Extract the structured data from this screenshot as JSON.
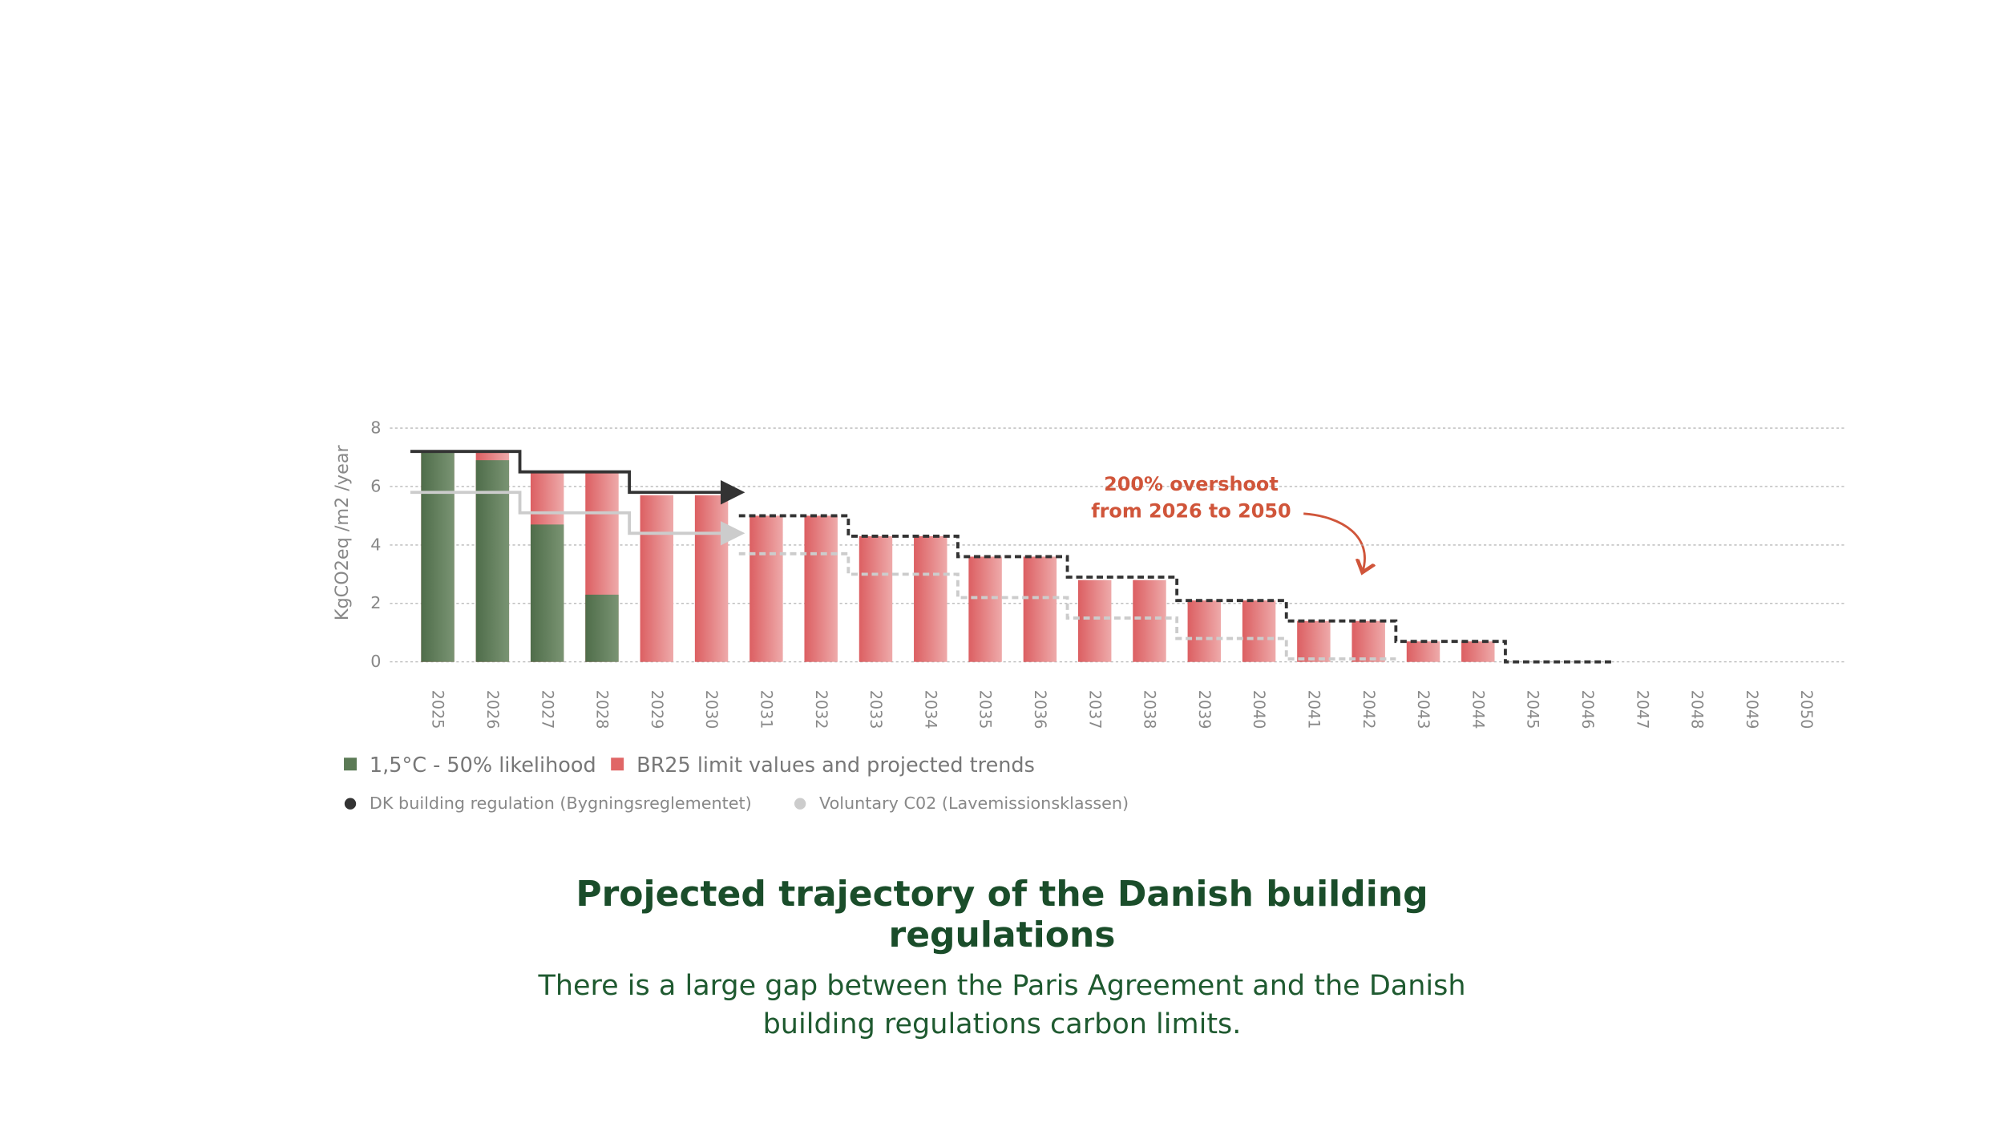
{
  "chart_data": {
    "type": "bar",
    "title": "Projected trajectory of the Danish building regulations",
    "subtitle": "There is a large gap between the Paris Agreement and the Danish building regulations carbon limits.",
    "y_label": "KgCO2eq /m2 /year",
    "annotation": [
      "200% overshoot",
      "from 2026 to 2050"
    ],
    "categories": [
      "2025",
      "2026",
      "2027",
      "2028",
      "2029",
      "2030",
      "2031",
      "2032",
      "2033",
      "2034",
      "2035",
      "2036",
      "2037",
      "2038",
      "2039",
      "2040",
      "2041",
      "2042",
      "2043",
      "2044",
      "2045",
      "2046",
      "2047",
      "2048",
      "2049",
      "2050"
    ],
    "ylim": [
      0,
      8
    ],
    "yticks": [
      0,
      2,
      4,
      6,
      8
    ],
    "grid": true,
    "series": [
      {
        "name": "1,5°C - 50% likelihood",
        "color": "#5b7a55",
        "kind": "bar",
        "values": [
          7.2,
          6.9,
          4.7,
          2.3,
          0,
          0,
          0,
          0,
          0,
          0,
          0,
          0,
          0,
          0,
          0,
          0,
          0,
          0,
          0,
          0,
          0,
          0,
          0,
          0,
          0,
          0
        ]
      },
      {
        "name": "BR25 limit values and projected trends",
        "color": "#e06666",
        "kind": "bar",
        "values": [
          7.2,
          7.2,
          6.5,
          6.5,
          5.7,
          5.7,
          5.0,
          5.0,
          4.3,
          4.3,
          3.6,
          3.6,
          2.8,
          2.8,
          2.1,
          2.1,
          1.4,
          1.4,
          0.7,
          0.7,
          0,
          0,
          0,
          0,
          0,
          0
        ]
      },
      {
        "name": "DK building regulation (Bygningsreglementet)",
        "color": "#333333",
        "kind": "step",
        "values": [
          7.2,
          7.2,
          6.5,
          6.5,
          5.8,
          5.8,
          5.0,
          5.0,
          4.3,
          4.3,
          3.6,
          3.6,
          2.9,
          2.9,
          2.1,
          2.1,
          1.4,
          1.4,
          0.7,
          0.7,
          0,
          0,
          null,
          null,
          null,
          null
        ]
      },
      {
        "name": "Voluntary C02 (Lavemissionsklassen)",
        "color": "#cccccc",
        "kind": "step",
        "values": [
          5.8,
          5.8,
          5.1,
          5.1,
          4.4,
          4.4,
          3.7,
          3.7,
          3.0,
          3.0,
          2.2,
          2.2,
          1.5,
          1.5,
          0.8,
          0.8,
          0.1,
          0.1,
          null,
          null,
          null,
          null,
          null,
          null,
          null,
          null
        ]
      }
    ]
  }
}
